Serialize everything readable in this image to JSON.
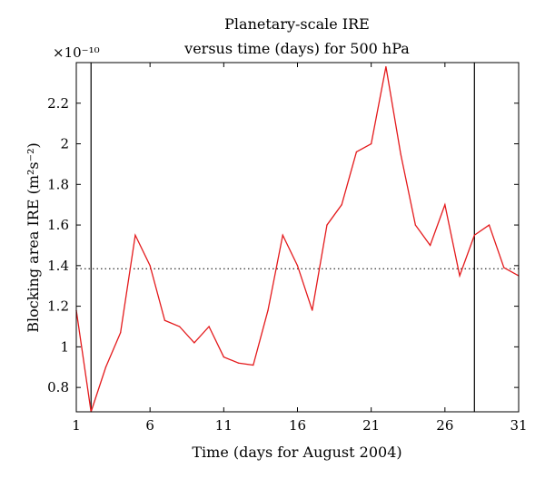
{
  "chart_data": {
    "type": "line",
    "title_lines": [
      "Planetary-scale IRE",
      "versus time (days) for 500 hPa"
    ],
    "multiplier_label": "×10⁻¹⁰",
    "xlabel": "Time (days for August 2004)",
    "ylabel": "Blocking area IRE (m²s⁻²)",
    "xlim": [
      1,
      31
    ],
    "ylim": [
      0.68,
      2.4
    ],
    "xticks": [
      1,
      6,
      11,
      16,
      21,
      26,
      31
    ],
    "xtick_labels": [
      "1",
      "6",
      "11",
      "16",
      "21",
      "26",
      "31"
    ],
    "yticks": [
      0.8,
      1,
      1.2,
      1.4,
      1.6,
      1.8,
      2,
      2.2
    ],
    "ytick_labels": [
      "0.8",
      "1",
      "1.2",
      "1.4",
      "1.6",
      "1.8",
      "2",
      "2.2"
    ],
    "grid": false,
    "series": [
      {
        "color": "#e41a1c",
        "x": [
          1,
          2,
          3,
          4,
          5,
          6,
          7,
          8,
          9,
          10,
          11,
          12,
          13,
          14,
          15,
          16,
          17,
          18,
          19,
          20,
          21,
          22,
          23,
          24,
          25,
          26,
          27,
          28,
          29,
          30,
          31
        ],
        "y": [
          1.18,
          0.68,
          0.9,
          1.07,
          1.55,
          1.4,
          1.13,
          1.1,
          1.02,
          1.1,
          0.95,
          0.92,
          0.91,
          1.18,
          1.55,
          1.4,
          1.18,
          1.6,
          1.7,
          1.96,
          2.0,
          2.38,
          1.95,
          1.6,
          1.5,
          1.7,
          1.35,
          1.55,
          1.6,
          1.39,
          1.35
        ]
      }
    ],
    "reference_line": {
      "y": 1.385,
      "style": "dotted",
      "color": "#000000"
    },
    "vertical_markers": [
      {
        "x": 2,
        "color": "#000000"
      },
      {
        "x": 28,
        "color": "#000000"
      }
    ]
  }
}
